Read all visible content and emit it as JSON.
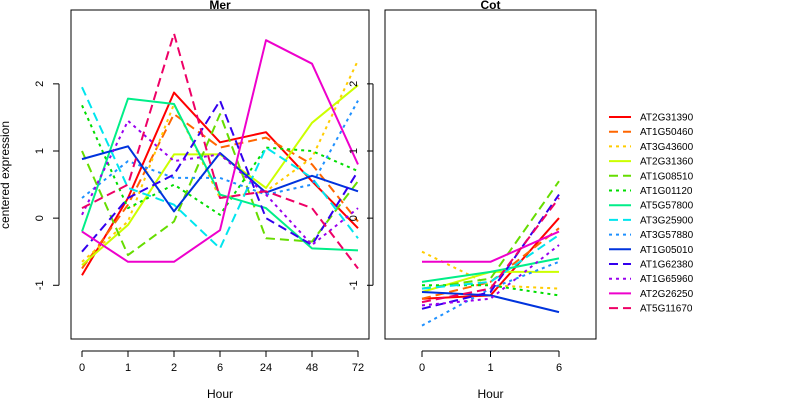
{
  "chart_data": {
    "type": "line",
    "ylabel": "centered expression",
    "ylim": [
      -1.8,
      3.1
    ],
    "y_ticks": [
      -1,
      0,
      1,
      2
    ],
    "y_tick_labels": [
      "-1",
      "0",
      "1",
      "2"
    ],
    "series_meta": [
      {
        "name": "AT2G31390",
        "color": "#ff0000",
        "dash": "solid"
      },
      {
        "name": "AT1G50460",
        "color": "#ff6600",
        "dash": "dashed"
      },
      {
        "name": "AT3G43600",
        "color": "#ffcc00",
        "dash": "dotted"
      },
      {
        "name": "AT2G31360",
        "color": "#ccff00",
        "dash": "solid"
      },
      {
        "name": "AT1G08510",
        "color": "#66dd00",
        "dash": "dashed"
      },
      {
        "name": "AT1G01120",
        "color": "#00dd00",
        "dash": "dotted"
      },
      {
        "name": "AT5G57800",
        "color": "#00ee88",
        "dash": "solid"
      },
      {
        "name": "AT3G25900",
        "color": "#00e5ee",
        "dash": "dashed"
      },
      {
        "name": "AT3G57880",
        "color": "#1e90ff",
        "dash": "dotted"
      },
      {
        "name": "AT1G05010",
        "color": "#0033dd",
        "dash": "solid"
      },
      {
        "name": "AT1G62380",
        "color": "#3300ee",
        "dash": "dashed"
      },
      {
        "name": "AT1G65960",
        "color": "#9900ee",
        "dash": "dotted"
      },
      {
        "name": "AT2G26250",
        "color": "#ee00cc",
        "dash": "solid"
      },
      {
        "name": "AT5G11670",
        "color": "#ee0066",
        "dash": "dashed"
      }
    ],
    "panels": [
      {
        "title": "Mer",
        "xlabel": "Hour",
        "categories": [
          "0",
          "1",
          "2",
          "6",
          "24",
          "48",
          "72"
        ],
        "series": [
          {
            "name": "AT2G31390",
            "values": [
              -0.85,
              0.3,
              1.87,
              1.13,
              1.28,
              0.55,
              -0.15
            ]
          },
          {
            "name": "AT1G50460",
            "values": [
              -0.75,
              0.2,
              1.55,
              1.05,
              1.2,
              0.8,
              -0.05
            ]
          },
          {
            "name": "AT3G43600",
            "values": [
              -0.65,
              -0.05,
              1.7,
              0.3,
              0.4,
              0.9,
              2.35
            ]
          },
          {
            "name": "AT2G31360",
            "values": [
              -0.7,
              -0.1,
              0.95,
              0.95,
              0.45,
              1.42,
              1.98
            ]
          },
          {
            "name": "AT1G08510",
            "values": [
              1.0,
              -0.55,
              -0.05,
              1.55,
              -0.3,
              -0.35,
              0.55
            ]
          },
          {
            "name": "AT1G01120",
            "values": [
              1.68,
              0.15,
              0.5,
              0.05,
              1.05,
              1.0,
              0.7
            ]
          },
          {
            "name": "AT5G57800",
            "values": [
              -0.2,
              1.78,
              1.7,
              0.35,
              0.15,
              -0.45,
              -0.48
            ]
          },
          {
            "name": "AT3G25900",
            "values": [
              1.95,
              0.45,
              0.2,
              -0.45,
              1.05,
              0.6,
              -0.3
            ]
          },
          {
            "name": "AT3G57880",
            "values": [
              0.3,
              0.85,
              0.6,
              0.6,
              0.35,
              0.5,
              1.75
            ]
          },
          {
            "name": "AT1G05010",
            "values": [
              0.88,
              1.07,
              0.1,
              0.97,
              0.38,
              0.63,
              0.4
            ]
          },
          {
            "name": "AT1G62380",
            "values": [
              -0.5,
              0.3,
              0.65,
              1.75,
              0.0,
              -0.4,
              0.7
            ]
          },
          {
            "name": "AT1G65960",
            "values": [
              0.05,
              1.45,
              0.85,
              0.95,
              0.35,
              -0.4,
              0.15
            ]
          },
          {
            "name": "AT2G26250",
            "values": [
              -0.2,
              -0.65,
              -0.65,
              -0.18,
              2.65,
              2.3,
              0.8
            ]
          },
          {
            "name": "AT5G11670",
            "values": [
              0.15,
              0.5,
              2.75,
              0.3,
              0.4,
              0.15,
              -0.75
            ]
          }
        ]
      },
      {
        "title": "Cot",
        "xlabel": "Hour",
        "categories": [
          "0",
          "1",
          "6"
        ],
        "series": [
          {
            "name": "AT2G31390",
            "values": [
              -1.2,
              -1.15,
              0.0
            ]
          },
          {
            "name": "AT1G50460",
            "values": [
              -1.2,
              -0.95,
              -0.15
            ]
          },
          {
            "name": "AT3G43600",
            "values": [
              -0.5,
              -1.0,
              -1.05
            ]
          },
          {
            "name": "AT2G31360",
            "values": [
              -1.1,
              -0.8,
              -0.8
            ]
          },
          {
            "name": "AT1G08510",
            "values": [
              -1.05,
              -0.9,
              0.55
            ]
          },
          {
            "name": "AT1G01120",
            "values": [
              -1.0,
              -1.0,
              -1.15
            ]
          },
          {
            "name": "AT5G57800",
            "values": [
              -0.95,
              -0.8,
              -0.6
            ]
          },
          {
            "name": "AT3G25900",
            "values": [
              -1.05,
              -0.95,
              -0.25
            ]
          },
          {
            "name": "AT3G57880",
            "values": [
              -1.6,
              -1.05,
              -0.65
            ]
          },
          {
            "name": "AT1G05010",
            "values": [
              -1.1,
              -1.15,
              -1.4
            ]
          },
          {
            "name": "AT1G62380",
            "values": [
              -1.35,
              -1.1,
              0.35
            ]
          },
          {
            "name": "AT1G65960",
            "values": [
              -1.3,
              -1.2,
              -0.4
            ]
          },
          {
            "name": "AT2G26250",
            "values": [
              -0.65,
              -0.65,
              -0.2
            ]
          },
          {
            "name": "AT5G11670",
            "values": [
              -1.25,
              -1.05,
              0.3
            ]
          }
        ]
      }
    ]
  }
}
